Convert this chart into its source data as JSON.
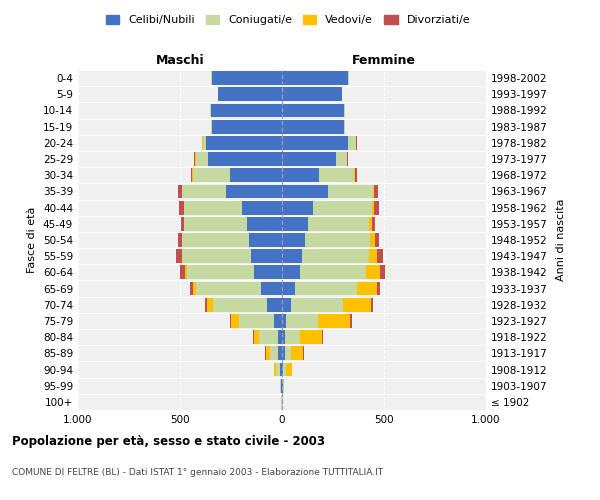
{
  "age_groups": [
    "100+",
    "95-99",
    "90-94",
    "85-89",
    "80-84",
    "75-79",
    "70-74",
    "65-69",
    "60-64",
    "55-59",
    "50-54",
    "45-49",
    "40-44",
    "35-39",
    "30-34",
    "25-29",
    "20-24",
    "15-19",
    "10-14",
    "5-9",
    "0-4"
  ],
  "birth_years": [
    "≤ 1902",
    "1903-1907",
    "1908-1912",
    "1913-1917",
    "1918-1922",
    "1923-1927",
    "1928-1932",
    "1933-1937",
    "1938-1942",
    "1943-1947",
    "1948-1952",
    "1953-1957",
    "1958-1962",
    "1963-1967",
    "1968-1972",
    "1973-1977",
    "1978-1982",
    "1983-1987",
    "1988-1992",
    "1993-1997",
    "1998-2002"
  ],
  "maschi": {
    "celibi": [
      2,
      4,
      10,
      18,
      22,
      38,
      75,
      105,
      138,
      150,
      160,
      170,
      195,
      275,
      255,
      365,
      375,
      345,
      350,
      315,
      345
    ],
    "coniugati": [
      2,
      4,
      18,
      42,
      92,
      175,
      265,
      315,
      330,
      338,
      330,
      310,
      285,
      215,
      182,
      58,
      14,
      4,
      2,
      1,
      1
    ],
    "vedovi": [
      0,
      2,
      9,
      18,
      22,
      38,
      28,
      18,
      9,
      4,
      2,
      2,
      2,
      2,
      2,
      2,
      2,
      0,
      0,
      0,
      0
    ],
    "divorziati": [
      0,
      0,
      2,
      4,
      4,
      4,
      9,
      14,
      23,
      28,
      18,
      14,
      23,
      18,
      9,
      4,
      2,
      0,
      0,
      0,
      0
    ]
  },
  "femmine": {
    "nubili": [
      2,
      4,
      7,
      13,
      16,
      22,
      42,
      62,
      88,
      97,
      112,
      127,
      152,
      225,
      182,
      265,
      325,
      305,
      305,
      295,
      325
    ],
    "coniugate": [
      2,
      4,
      13,
      32,
      72,
      155,
      255,
      305,
      325,
      330,
      320,
      300,
      290,
      220,
      172,
      52,
      38,
      4,
      2,
      1,
      1
    ],
    "vedove": [
      0,
      4,
      28,
      58,
      108,
      158,
      138,
      98,
      68,
      38,
      22,
      14,
      9,
      7,
      4,
      2,
      2,
      0,
      0,
      0,
      0
    ],
    "divorziate": [
      0,
      0,
      2,
      4,
      4,
      7,
      11,
      14,
      23,
      28,
      20,
      16,
      23,
      20,
      11,
      4,
      2,
      0,
      0,
      0,
      0
    ]
  },
  "colors": {
    "celibi": "#4472c4",
    "coniugati": "#c5d9a0",
    "vedovi": "#ffc000",
    "divorziati": "#c0504d"
  },
  "legend_labels": [
    "Celibi/Nubili",
    "Coniugati/e",
    "Vedovi/e",
    "Divorziati/e"
  ],
  "title_maschi": "Maschi",
  "title_femmine": "Femmine",
  "ylabel_left": "Fasce di età",
  "ylabel_right": "Anni di nascita",
  "main_title": "Popolazione per età, sesso e stato civile - 2003",
  "subtitle": "COMUNE DI FELTRE (BL) - Dati ISTAT 1° gennaio 2003 - Elaborazione TUTTITALIA.IT",
  "xlim": 1000,
  "bg_color": "#f0f0f0",
  "grid_color": "#cccccc"
}
